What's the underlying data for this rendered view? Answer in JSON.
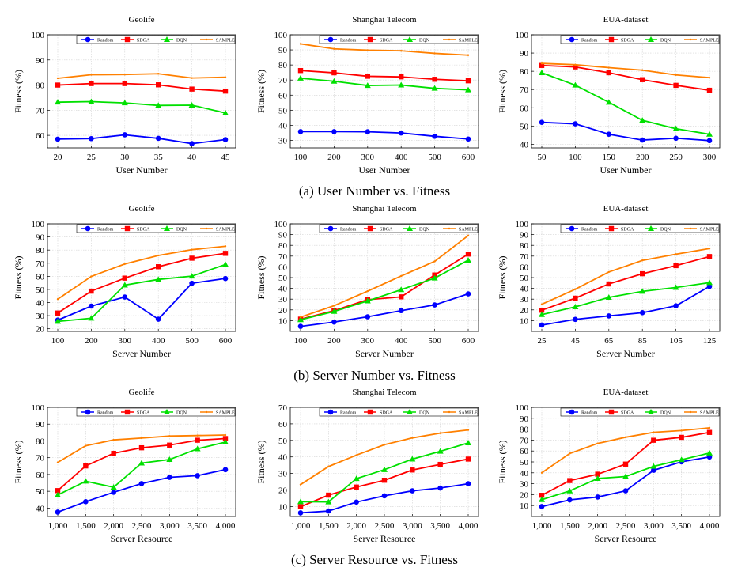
{
  "colors": {
    "Random": "#0000ff",
    "SDGA": "#ff0000",
    "DQN": "#00e000",
    "SAMPLE": "#ff8000"
  },
  "captions": [
    "(a) User Number vs. Fitness",
    "(b) Server Number vs. Fitness",
    "(c) Server Resource vs. Fitness"
  ],
  "chart_data": [
    {
      "type": "line",
      "title": "Geolife",
      "xlabel": "User Number",
      "ylabel": "Fitness (%)",
      "x": [
        20,
        25,
        30,
        35,
        40,
        45
      ],
      "x_tick_labels": [
        "20",
        "25",
        "30",
        "35",
        "40",
        "45"
      ],
      "ylim": [
        55,
        100
      ],
      "y_ticks": [
        60,
        70,
        80,
        90,
        100
      ],
      "grid": true,
      "legend": "top",
      "series": [
        {
          "name": "Random",
          "marker": "circle",
          "values": [
            58.5,
            58.7,
            60.2,
            58.8,
            56.7,
            58.3
          ]
        },
        {
          "name": "SDGA",
          "marker": "square",
          "values": [
            80,
            80.6,
            80.6,
            80.1,
            78.4,
            77.6
          ]
        },
        {
          "name": "DQN",
          "marker": "triangle",
          "values": [
            73.2,
            73.4,
            72.9,
            71.9,
            72,
            68.9
          ]
        },
        {
          "name": "SAMPLE",
          "marker": "line",
          "values": [
            82.7,
            84.1,
            84.2,
            84.5,
            82.8,
            83.1
          ]
        }
      ]
    },
    {
      "type": "line",
      "title": "Shanghai Telecom",
      "xlabel": "User Number",
      "ylabel": "Fitness (%)",
      "x": [
        100,
        200,
        300,
        400,
        500,
        600
      ],
      "x_tick_labels": [
        "100",
        "200",
        "300",
        "400",
        "500",
        "600"
      ],
      "ylim": [
        25,
        100
      ],
      "y_ticks": [
        30,
        40,
        50,
        60,
        70,
        80,
        90,
        100
      ],
      "grid": true,
      "legend": "top",
      "series": [
        {
          "name": "Random",
          "marker": "circle",
          "values": [
            35.8,
            35.8,
            35.7,
            34.9,
            32.7,
            30.9
          ]
        },
        {
          "name": "SDGA",
          "marker": "square",
          "values": [
            76.3,
            74.8,
            72.5,
            72.1,
            70.5,
            69.5
          ]
        },
        {
          "name": "DQN",
          "marker": "triangle",
          "values": [
            71.2,
            69.2,
            66.4,
            66.7,
            64.5,
            63.5
          ]
        },
        {
          "name": "SAMPLE",
          "marker": "line",
          "values": [
            94,
            90.7,
            89.8,
            89.4,
            87.7,
            86.5
          ]
        }
      ]
    },
    {
      "type": "line",
      "title": "EUA-dataset",
      "xlabel": "User Number",
      "ylabel": "Fitness (%)",
      "x": [
        50,
        100,
        150,
        200,
        250,
        300
      ],
      "x_tick_labels": [
        "50",
        "100",
        "150",
        "200",
        "250",
        "300"
      ],
      "ylim": [
        38,
        100
      ],
      "y_ticks": [
        40,
        50,
        60,
        70,
        80,
        90,
        100
      ],
      "grid": true,
      "legend": "top",
      "series": [
        {
          "name": "Random",
          "marker": "circle",
          "values": [
            52,
            51.2,
            45.5,
            42.3,
            43.3,
            42
          ]
        },
        {
          "name": "SDGA",
          "marker": "square",
          "values": [
            83.2,
            82.4,
            79.2,
            75.4,
            72.3,
            69.6
          ]
        },
        {
          "name": "DQN",
          "marker": "triangle",
          "values": [
            79.2,
            72.4,
            63,
            53.1,
            48.5,
            45.5
          ]
        },
        {
          "name": "SAMPLE",
          "marker": "line",
          "values": [
            84.3,
            83.6,
            82,
            80.6,
            78,
            76.5
          ]
        }
      ]
    },
    {
      "type": "line",
      "title": "Geolife",
      "xlabel": "Server Number",
      "ylabel": "Fitness (%)",
      "x": [
        100,
        200,
        300,
        400,
        500,
        600
      ],
      "x_tick_labels": [
        "100",
        "200",
        "300",
        "400",
        "500",
        "600"
      ],
      "ylim": [
        18,
        100
      ],
      "y_ticks": [
        20,
        30,
        40,
        50,
        60,
        70,
        80,
        90,
        100
      ],
      "grid": true,
      "legend": "top",
      "series": [
        {
          "name": "Random",
          "marker": "circle",
          "values": [
            26.6,
            37.3,
            44.2,
            27.3,
            54.7,
            58.3
          ]
        },
        {
          "name": "SDGA",
          "marker": "square",
          "values": [
            32,
            48.7,
            58.6,
            67.3,
            73.8,
            77.5
          ]
        },
        {
          "name": "DQN",
          "marker": "triangle",
          "values": [
            25.6,
            28,
            53.3,
            57.6,
            60.1,
            69
          ]
        },
        {
          "name": "SAMPLE",
          "marker": "line",
          "values": [
            42.6,
            59.9,
            69.4,
            75.9,
            80.3,
            82.9
          ]
        }
      ]
    },
    {
      "type": "line",
      "title": "Shanghai Telecom",
      "xlabel": "Server Number",
      "ylabel": "Fitness (%)",
      "x": [
        100,
        200,
        300,
        400,
        500,
        600
      ],
      "x_tick_labels": [
        "100",
        "200",
        "300",
        "400",
        "500",
        "600"
      ],
      "ylim": [
        0,
        100
      ],
      "y_ticks": [
        10,
        20,
        30,
        40,
        50,
        60,
        70,
        80,
        90,
        100
      ],
      "grid": true,
      "legend": "top",
      "series": [
        {
          "name": "Random",
          "marker": "circle",
          "values": [
            4.7,
            8.7,
            13.6,
            19.3,
            24.6,
            34.9
          ]
        },
        {
          "name": "SDGA",
          "marker": "square",
          "values": [
            11.4,
            19.3,
            29.5,
            32.1,
            52.4,
            71.9
          ]
        },
        {
          "name": "DQN",
          "marker": "triangle",
          "values": [
            10.8,
            18.6,
            28.3,
            38.8,
            49.5,
            66.2
          ]
        },
        {
          "name": "SAMPLE",
          "marker": "line",
          "values": [
            13.3,
            23.9,
            37.4,
            51.5,
            65.1,
            89.1
          ]
        }
      ]
    },
    {
      "type": "line",
      "title": "EUA-dataset",
      "xlabel": "Server Number",
      "ylabel": "Fitness (%)",
      "x": [
        25,
        45,
        65,
        85,
        105,
        125
      ],
      "x_tick_labels": [
        "25",
        "45",
        "65",
        "85",
        "105",
        "125"
      ],
      "ylim": [
        0,
        100
      ],
      "y_ticks": [
        10,
        20,
        30,
        40,
        50,
        60,
        70,
        80,
        90,
        100
      ],
      "grid": true,
      "legend": "top",
      "series": [
        {
          "name": "Random",
          "marker": "circle",
          "values": [
            5.9,
            11.2,
            14.4,
            17.4,
            23.8,
            41.8
          ]
        },
        {
          "name": "SDGA",
          "marker": "square",
          "values": [
            19.7,
            30.9,
            44.1,
            53.6,
            61.1,
            69.6
          ]
        },
        {
          "name": "DQN",
          "marker": "triangle",
          "values": [
            15.6,
            22.8,
            31.6,
            37.2,
            40.8,
            45.3
          ]
        },
        {
          "name": "SAMPLE",
          "marker": "line",
          "values": [
            25.2,
            39.2,
            55.2,
            66,
            71.8,
            77
          ]
        }
      ]
    },
    {
      "type": "line",
      "title": "Geolife",
      "xlabel": "Server Resource",
      "ylabel": "Fitness (%)",
      "x": [
        1000,
        1500,
        2000,
        2500,
        3000,
        3500,
        4000
      ],
      "x_tick_labels": [
        "1,000",
        "1,500",
        "2,000",
        "2,500",
        "3,000",
        "3,500",
        "4,000"
      ],
      "ylim": [
        35,
        100
      ],
      "y_ticks": [
        40,
        50,
        60,
        70,
        80,
        90,
        100
      ],
      "grid": true,
      "legend": "top",
      "series": [
        {
          "name": "Random",
          "marker": "circle",
          "values": [
            37.6,
            43.8,
            49.4,
            54.6,
            58.3,
            59.3,
            62.9
          ]
        },
        {
          "name": "SDGA",
          "marker": "square",
          "values": [
            50.4,
            65.1,
            72.6,
            75.9,
            77.5,
            80.4,
            81.4
          ]
        },
        {
          "name": "DQN",
          "marker": "triangle",
          "values": [
            47.8,
            56,
            52.4,
            66.8,
            68.9,
            75.3,
            79.3
          ]
        },
        {
          "name": "SAMPLE",
          "marker": "line",
          "values": [
            67.2,
            77.1,
            80.6,
            81.7,
            82.9,
            83.2,
            83.5
          ]
        }
      ]
    },
    {
      "type": "line",
      "title": "Shanghai Telecom",
      "xlabel": "Server Resource",
      "ylabel": "Fitness (%)",
      "x": [
        1000,
        1500,
        2000,
        2500,
        3000,
        3500,
        4000
      ],
      "x_tick_labels": [
        "1,000",
        "1,500",
        "2,000",
        "2,500",
        "3,000",
        "3,500",
        "4,000"
      ],
      "ylim": [
        4,
        70
      ],
      "y_ticks": [
        10,
        20,
        30,
        40,
        50,
        60,
        70
      ],
      "grid": true,
      "legend": "top",
      "series": [
        {
          "name": "Random",
          "marker": "circle",
          "values": [
            6.2,
            7.3,
            12.7,
            16.5,
            19.5,
            21.2,
            23.8
          ]
        },
        {
          "name": "SDGA",
          "marker": "square",
          "values": [
            9.9,
            16.9,
            21.8,
            25.9,
            32.1,
            35.5,
            38.7
          ]
        },
        {
          "name": "DQN",
          "marker": "triangle",
          "values": [
            12.9,
            12.8,
            26.9,
            32.3,
            38.7,
            43.4,
            48.5
          ]
        },
        {
          "name": "SAMPLE",
          "marker": "line",
          "values": [
            23.3,
            34.2,
            41.1,
            47.4,
            51.5,
            54.4,
            56.3
          ]
        }
      ]
    },
    {
      "type": "line",
      "title": "EUA-dataset",
      "xlabel": "Server Resource",
      "ylabel": "Fitness (%)",
      "x": [
        1000,
        1500,
        2000,
        2500,
        3000,
        3500,
        4000
      ],
      "x_tick_labels": [
        "1,000",
        "1,500",
        "2,000",
        "2,500",
        "3,000",
        "3,500",
        "4,000"
      ],
      "ylim": [
        0,
        100
      ],
      "y_ticks": [
        10,
        20,
        30,
        40,
        50,
        60,
        70,
        80,
        90,
        100
      ],
      "grid": true,
      "legend": "top",
      "series": [
        {
          "name": "Random",
          "marker": "circle",
          "values": [
            9.1,
            15.2,
            17.8,
            23.5,
            42.3,
            50.1,
            54.5
          ]
        },
        {
          "name": "SDGA",
          "marker": "square",
          "values": [
            19.4,
            32.9,
            38.7,
            48,
            69.8,
            72.5,
            77
          ]
        },
        {
          "name": "DQN",
          "marker": "triangle",
          "values": [
            15.4,
            23.4,
            34.8,
            36.6,
            45.9,
            52,
            58.1
          ]
        },
        {
          "name": "SAMPLE",
          "marker": "line",
          "values": [
            40,
            57.7,
            66.9,
            72.6,
            77.1,
            78.7,
            81.2
          ]
        }
      ]
    }
  ]
}
